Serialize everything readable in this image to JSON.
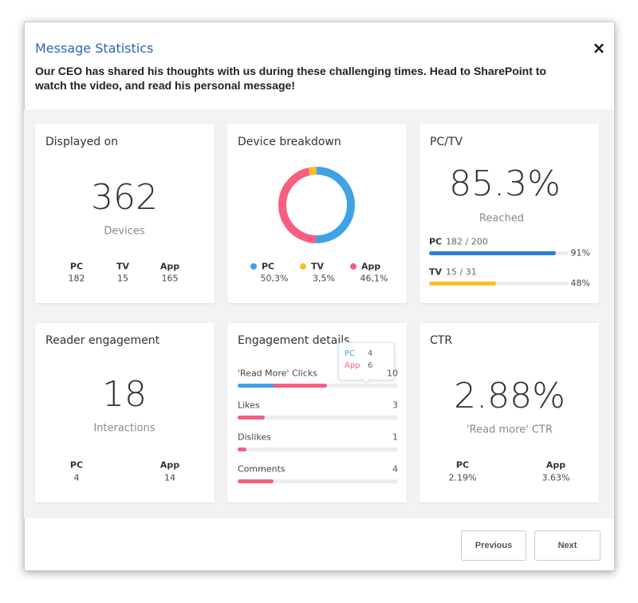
{
  "header": {
    "title": "Message Statistics",
    "close": "×",
    "message": "Our CEO has shared his thoughts with us during these challenging times. Head to SharePoint to watch the video, and read his personal message!"
  },
  "displayed_on": {
    "title": "Displayed on",
    "total": 362,
    "unit": "Devices",
    "devices": [
      {
        "name": "PC",
        "count": 182
      },
      {
        "name": "TV",
        "count": 15
      },
      {
        "name": "App",
        "count": 165
      }
    ]
  },
  "device_breakdown": {
    "title": "Device breakdown",
    "segments": [
      {
        "name": "PC",
        "value": 50.3,
        "label": "50,3%",
        "color": "#3ea2e5"
      },
      {
        "name": "TV",
        "value": 3.5,
        "label": "3,5%",
        "color": "#f8be2c"
      },
      {
        "name": "App",
        "value": 46.1,
        "label": "46,1%",
        "color": "#f75f80"
      }
    ]
  },
  "pc_tv": {
    "title": "PC/TV",
    "reached": "85.3%",
    "caption": "Reached",
    "rows": [
      {
        "name": "PC",
        "ratio": "182 / 200",
        "percent": {
          "value": 91,
          "label": "91%"
        },
        "color": "#2a7fe0"
      },
      {
        "name": "TV",
        "ratio": "15 / 31",
        "percent": {
          "value": 48,
          "label": "48%"
        },
        "color": "#f8be2c"
      }
    ]
  },
  "reader_engagement": {
    "title": "Reader engagement",
    "total": 18,
    "unit": "Interactions",
    "split": [
      {
        "name": "PC",
        "count": 4
      },
      {
        "name": "App",
        "count": 14
      }
    ]
  },
  "engagement_details": {
    "title": "Engagement details",
    "rows": [
      {
        "name": "'Read More' Clicks",
        "count": 10,
        "parts": [
          {
            "name": "PC",
            "value": 4,
            "color": "#3ea2e5"
          },
          {
            "name": "App",
            "value": 6,
            "color": "#f75f80"
          }
        ]
      },
      {
        "name": "Likes",
        "count": 3,
        "color": "#f75f80"
      },
      {
        "name": "Dislikes",
        "count": 1,
        "color": "#f75f80"
      },
      {
        "name": "Comments",
        "count": 4,
        "color": "#f75f80"
      }
    ]
  },
  "ctr": {
    "title": "CTR",
    "value": "2.88%",
    "caption": "'Read more' CTR",
    "split": [
      {
        "name": "PC",
        "value": "2.19%"
      },
      {
        "name": "App",
        "value": "3.63%"
      }
    ]
  },
  "footer": {
    "previous": "Previous",
    "next": "Next"
  }
}
